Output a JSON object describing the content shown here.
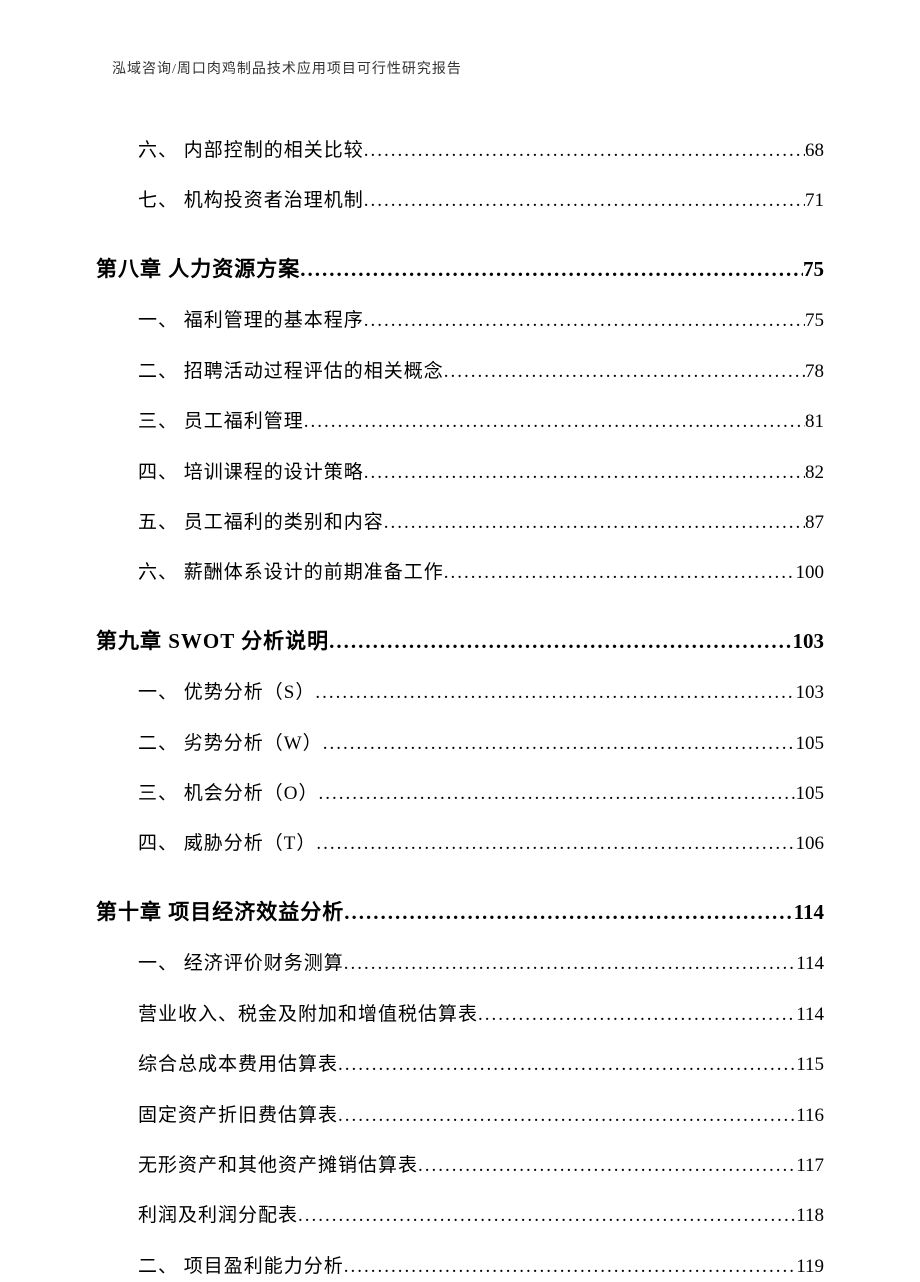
{
  "header": "泓域咨询/周口肉鸡制品技术应用项目可行性研究报告",
  "toc": [
    {
      "type": "sub",
      "label": "六、 内部控制的相关比较",
      "page": "68"
    },
    {
      "type": "sub",
      "label": "七、 机构投资者治理机制",
      "page": "71"
    },
    {
      "type": "chapter",
      "label": "第八章 人力资源方案",
      "page": "75"
    },
    {
      "type": "sub",
      "label": "一、 福利管理的基本程序",
      "page": "75"
    },
    {
      "type": "sub",
      "label": "二、 招聘活动过程评估的相关概念",
      "page": "78"
    },
    {
      "type": "sub",
      "label": "三、 员工福利管理",
      "page": "81"
    },
    {
      "type": "sub",
      "label": "四、 培训课程的设计策略",
      "page": "82"
    },
    {
      "type": "sub",
      "label": "五、 员工福利的类别和内容",
      "page": "87"
    },
    {
      "type": "sub",
      "label": "六、 薪酬体系设计的前期准备工作",
      "page": "100"
    },
    {
      "type": "chapter",
      "label": "第九章 SWOT 分析说明",
      "page": "103"
    },
    {
      "type": "sub",
      "label": "一、 优势分析（S）",
      "page": "103"
    },
    {
      "type": "sub",
      "label": "二、 劣势分析（W）",
      "page": "105"
    },
    {
      "type": "sub",
      "label": "三、 机会分析（O）",
      "page": "105"
    },
    {
      "type": "sub",
      "label": "四、 威胁分析（T）",
      "page": "106"
    },
    {
      "type": "chapter",
      "label": "第十章 项目经济效益分析",
      "page": "114"
    },
    {
      "type": "sub",
      "label": "一、 经济评价财务测算",
      "page": "114"
    },
    {
      "type": "sub",
      "label": "营业收入、税金及附加和增值税估算表",
      "page": "114"
    },
    {
      "type": "sub",
      "label": "综合总成本费用估算表",
      "page": "115"
    },
    {
      "type": "sub",
      "label": "固定资产折旧费估算表",
      "page": "116"
    },
    {
      "type": "sub",
      "label": "无形资产和其他资产摊销估算表",
      "page": "117"
    },
    {
      "type": "sub",
      "label": "利润及利润分配表",
      "page": "118"
    },
    {
      "type": "sub",
      "label": "二、 项目盈利能力分析",
      "page": "119"
    }
  ]
}
